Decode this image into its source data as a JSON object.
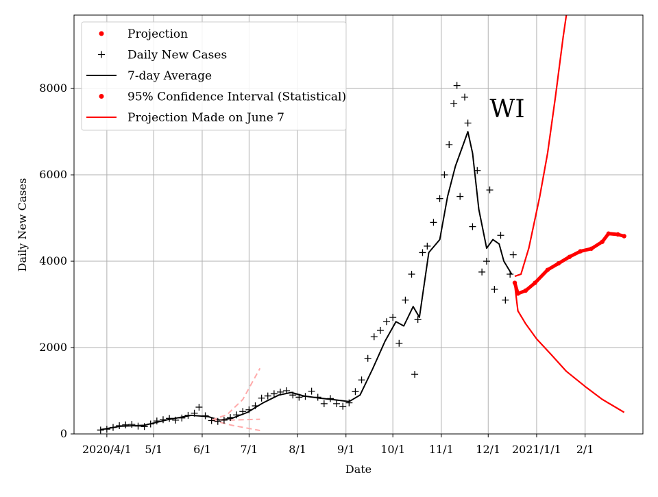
{
  "chart_data": {
    "type": "line",
    "title": "",
    "annotation": "WI",
    "xlabel": "Date",
    "ylabel": "Daily New Cases",
    "x_tick_labels": [
      "2020/4/1",
      "5/1",
      "6/1",
      "7/1",
      "8/1",
      "9/1",
      "10/1",
      "11/1",
      "12/1",
      "2021/1/1",
      "2/1"
    ],
    "x_tick_dates": [
      "2020-04-01",
      "2020-05-01",
      "2020-06-01",
      "2020-07-01",
      "2020-08-01",
      "2020-09-01",
      "2020-10-01",
      "2020-11-01",
      "2020-12-01",
      "2021-01-01",
      "2021-02-01"
    ],
    "y_tick_labels": [
      "0",
      "2000",
      "4000",
      "6000",
      "8000"
    ],
    "y_tick_values": [
      0,
      2000,
      4000,
      6000,
      8000
    ],
    "xlim": [
      "2020-03-11",
      "2021-03-10"
    ],
    "ylim": [
      0,
      9700
    ],
    "grid": true,
    "legend_position": "top-left",
    "legend": [
      {
        "label": "Projection",
        "marker": "dot",
        "color": "#ff0000"
      },
      {
        "label": "Daily New Cases",
        "marker": "plus",
        "color": "#000000"
      },
      {
        "label": "7-day Average",
        "marker": "line",
        "color": "#000000"
      },
      {
        "label": "95% Confidence Interval (Statistical)",
        "marker": "dot",
        "color": "#ff0000"
      },
      {
        "label": "Projection Made on June 7",
        "marker": "line",
        "color": "#ff0000"
      }
    ],
    "colors": {
      "cases": "#000000",
      "average": "#000000",
      "projection": "#ff0000",
      "confidence_interval": "#ff0000",
      "june7_projection": "#ffaaaa",
      "grid": "#b0b0b0"
    },
    "series": [
      {
        "name": "Daily New Cases",
        "style": "plus",
        "points": [
          [
            "2020-03-28",
            90
          ],
          [
            "2020-04-01",
            110
          ],
          [
            "2020-04-05",
            150
          ],
          [
            "2020-04-09",
            190
          ],
          [
            "2020-04-13",
            210
          ],
          [
            "2020-04-17",
            220
          ],
          [
            "2020-04-21",
            180
          ],
          [
            "2020-04-25",
            170
          ],
          [
            "2020-04-29",
            230
          ],
          [
            "2020-05-03",
            300
          ],
          [
            "2020-05-07",
            330
          ],
          [
            "2020-05-11",
            360
          ],
          [
            "2020-05-15",
            320
          ],
          [
            "2020-05-19",
            370
          ],
          [
            "2020-05-23",
            430
          ],
          [
            "2020-05-27",
            480
          ],
          [
            "2020-05-30",
            620
          ],
          [
            "2020-06-03",
            420
          ],
          [
            "2020-06-07",
            310
          ],
          [
            "2020-06-11",
            290
          ],
          [
            "2020-06-15",
            320
          ],
          [
            "2020-06-19",
            380
          ],
          [
            "2020-06-23",
            440
          ],
          [
            "2020-06-27",
            520
          ],
          [
            "2020-07-01",
            560
          ],
          [
            "2020-07-05",
            650
          ],
          [
            "2020-07-09",
            830
          ],
          [
            "2020-07-13",
            880
          ],
          [
            "2020-07-17",
            930
          ],
          [
            "2020-07-21",
            970
          ],
          [
            "2020-07-25",
            1000
          ],
          [
            "2020-07-29",
            900
          ],
          [
            "2020-08-02",
            850
          ],
          [
            "2020-08-06",
            870
          ],
          [
            "2020-08-10",
            990
          ],
          [
            "2020-08-14",
            850
          ],
          [
            "2020-08-18",
            700
          ],
          [
            "2020-08-22",
            820
          ],
          [
            "2020-08-26",
            700
          ],
          [
            "2020-08-30",
            640
          ],
          [
            "2020-09-03",
            720
          ],
          [
            "2020-09-07",
            980
          ],
          [
            "2020-09-11",
            1250
          ],
          [
            "2020-09-15",
            1750
          ],
          [
            "2020-09-19",
            2250
          ],
          [
            "2020-09-23",
            2400
          ],
          [
            "2020-09-27",
            2600
          ],
          [
            "2020-10-01",
            2700
          ],
          [
            "2020-10-05",
            2100
          ],
          [
            "2020-10-09",
            3100
          ],
          [
            "2020-10-13",
            3700
          ],
          [
            "2020-10-15",
            1380
          ],
          [
            "2020-10-17",
            2650
          ],
          [
            "2020-10-20",
            4200
          ],
          [
            "2020-10-23",
            4350
          ],
          [
            "2020-10-27",
            4900
          ],
          [
            "2020-10-31",
            5450
          ],
          [
            "2020-11-03",
            6000
          ],
          [
            "2020-11-06",
            6700
          ],
          [
            "2020-11-09",
            7650
          ],
          [
            "2020-11-11",
            8070
          ],
          [
            "2020-11-13",
            5500
          ],
          [
            "2020-11-16",
            7800
          ],
          [
            "2020-11-18",
            7200
          ],
          [
            "2020-11-21",
            4800
          ],
          [
            "2020-11-24",
            6100
          ],
          [
            "2020-11-27",
            3750
          ],
          [
            "2020-11-30",
            4000
          ],
          [
            "2020-12-02",
            5650
          ],
          [
            "2020-12-05",
            3350
          ],
          [
            "2020-12-09",
            4600
          ],
          [
            "2020-12-12",
            3100
          ],
          [
            "2020-12-15",
            3700
          ],
          [
            "2020-12-17",
            4150
          ]
        ]
      },
      {
        "name": "7-day Average",
        "style": "line",
        "points": [
          [
            "2020-03-28",
            100
          ],
          [
            "2020-04-10",
            180
          ],
          [
            "2020-04-25",
            200
          ],
          [
            "2020-05-10",
            330
          ],
          [
            "2020-05-25",
            430
          ],
          [
            "2020-06-05",
            400
          ],
          [
            "2020-06-12",
            320
          ],
          [
            "2020-06-20",
            360
          ],
          [
            "2020-06-30",
            500
          ],
          [
            "2020-07-10",
            720
          ],
          [
            "2020-07-20",
            900
          ],
          [
            "2020-07-28",
            960
          ],
          [
            "2020-08-05",
            880
          ],
          [
            "2020-08-15",
            830
          ],
          [
            "2020-08-25",
            790
          ],
          [
            "2020-09-03",
            750
          ],
          [
            "2020-09-10",
            900
          ],
          [
            "2020-09-18",
            1500
          ],
          [
            "2020-09-26",
            2150
          ],
          [
            "2020-10-03",
            2600
          ],
          [
            "2020-10-08",
            2500
          ],
          [
            "2020-10-14",
            2950
          ],
          [
            "2020-10-18",
            2700
          ],
          [
            "2020-10-24",
            4200
          ],
          [
            "2020-10-31",
            4500
          ],
          [
            "2020-11-05",
            5500
          ],
          [
            "2020-11-10",
            6200
          ],
          [
            "2020-11-15",
            6700
          ],
          [
            "2020-11-18",
            7000
          ],
          [
            "2020-11-21",
            6500
          ],
          [
            "2020-11-25",
            5200
          ],
          [
            "2020-11-30",
            4300
          ],
          [
            "2020-12-04",
            4500
          ],
          [
            "2020-12-08",
            4400
          ],
          [
            "2020-12-11",
            4000
          ],
          [
            "2020-12-16",
            3700
          ]
        ]
      },
      {
        "name": "Projection",
        "style": "dots",
        "points": [
          [
            "2020-12-18",
            3500
          ],
          [
            "2020-12-20",
            3250
          ],
          [
            "2020-12-25",
            3320
          ],
          [
            "2020-12-31",
            3500
          ],
          [
            "2021-01-08",
            3800
          ],
          [
            "2021-01-15",
            3950
          ],
          [
            "2021-01-22",
            4100
          ],
          [
            "2021-01-29",
            4230
          ],
          [
            "2021-02-05",
            4290
          ],
          [
            "2021-02-12",
            4450
          ],
          [
            "2021-02-16",
            4640
          ],
          [
            "2021-02-22",
            4620
          ],
          [
            "2021-02-26",
            4580
          ]
        ]
      },
      {
        "name": "95% Confidence Interval (Statistical)",
        "style": "line",
        "role": "upper",
        "points": [
          [
            "2020-12-18",
            3650
          ],
          [
            "2020-12-22",
            3700
          ],
          [
            "2020-12-27",
            4300
          ],
          [
            "2021-01-03",
            5500
          ],
          [
            "2021-01-08",
            6500
          ],
          [
            "2021-01-13",
            7800
          ],
          [
            "2021-01-18",
            9200
          ],
          [
            "2021-01-20",
            9700
          ]
        ]
      },
      {
        "name": "95% Confidence Interval (Statistical)",
        "style": "line",
        "role": "lower",
        "points": [
          [
            "2020-12-18",
            3450
          ],
          [
            "2020-12-20",
            2850
          ],
          [
            "2020-12-25",
            2550
          ],
          [
            "2021-01-01",
            2200
          ],
          [
            "2021-01-10",
            1850
          ],
          [
            "2021-01-20",
            1450
          ],
          [
            "2021-02-01",
            1100
          ],
          [
            "2021-02-12",
            800
          ],
          [
            "2021-02-26",
            500
          ]
        ]
      },
      {
        "name": "Projection Made on June 7",
        "style": "dashed",
        "role": "upper",
        "points": [
          [
            "2020-06-07",
            320
          ],
          [
            "2020-06-17",
            450
          ],
          [
            "2020-06-27",
            800
          ],
          [
            "2020-07-08",
            1520
          ]
        ]
      },
      {
        "name": "Projection Made on June 7",
        "style": "dashed",
        "role": "middle",
        "points": [
          [
            "2020-06-07",
            320
          ],
          [
            "2020-06-20",
            320
          ],
          [
            "2020-07-08",
            340
          ]
        ]
      },
      {
        "name": "Projection Made on June 7",
        "style": "dashed",
        "role": "lower",
        "points": [
          [
            "2020-06-07",
            320
          ],
          [
            "2020-06-20",
            200
          ],
          [
            "2020-07-08",
            80
          ]
        ]
      }
    ]
  }
}
